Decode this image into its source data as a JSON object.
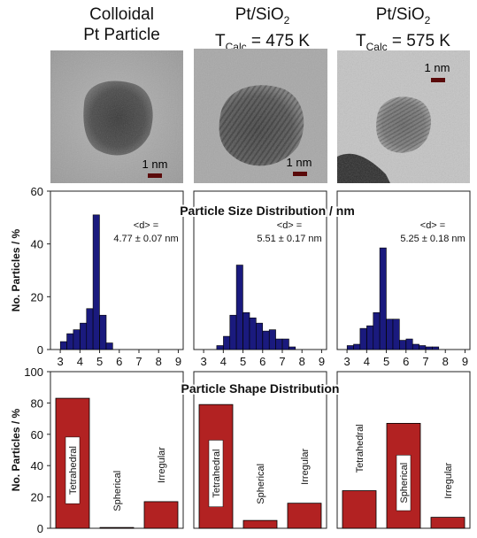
{
  "columns": [
    {
      "title_line1": "Colloidal",
      "title_line2": "Pt Particle",
      "scale_bar": "1 nm"
    },
    {
      "title_line1": "Pt/SiO",
      "title_sub1": "2",
      "title_line2_prefix": "T",
      "title_sub2": "Calc",
      "title_line2_suffix": " = 475 K",
      "scale_bar": "1 nm"
    },
    {
      "title_line1": "Pt/SiO",
      "title_sub1": "2",
      "title_line2_prefix": "T",
      "title_sub2": "Calc",
      "title_line2_suffix": " = 575 K",
      "scale_bar": "1 nm"
    }
  ],
  "colors": {
    "size_bar": "#1a1a7e",
    "shape_bar": "#b22222",
    "axis": "#222222"
  },
  "chart_data": [
    {
      "type": "bar",
      "title": "Particle Size Distribution / nm",
      "ylabel": "No. Particles / %",
      "ylim": [
        0,
        60
      ],
      "yticks": [
        0,
        20,
        40,
        60
      ],
      "xlim": [
        2.5,
        9.25
      ],
      "xticks": [
        3,
        4,
        5,
        6,
        7,
        8,
        9
      ],
      "panels": [
        {
          "annotation_line1": "<d> =",
          "annotation_line2": "4.77 ± 0.07 nm",
          "bin_width": 0.33,
          "bins": [
            {
              "x": 3.17,
              "y": 3
            },
            {
              "x": 3.5,
              "y": 6
            },
            {
              "x": 3.83,
              "y": 7.5
            },
            {
              "x": 4.17,
              "y": 10
            },
            {
              "x": 4.5,
              "y": 15.5
            },
            {
              "x": 4.83,
              "y": 51
            },
            {
              "x": 5.17,
              "y": 13
            },
            {
              "x": 5.5,
              "y": 2.5
            }
          ]
        },
        {
          "annotation_line1": "<d> =",
          "annotation_line2": "5.51 ± 0.17 nm",
          "bin_width": 0.33,
          "bins": [
            {
              "x": 3.83,
              "y": 1.5
            },
            {
              "x": 4.17,
              "y": 5
            },
            {
              "x": 4.5,
              "y": 13
            },
            {
              "x": 4.83,
              "y": 32
            },
            {
              "x": 5.17,
              "y": 14
            },
            {
              "x": 5.5,
              "y": 12
            },
            {
              "x": 5.83,
              "y": 10
            },
            {
              "x": 6.17,
              "y": 7
            },
            {
              "x": 6.5,
              "y": 7.5
            },
            {
              "x": 6.83,
              "y": 4
            },
            {
              "x": 7.17,
              "y": 4
            },
            {
              "x": 7.5,
              "y": 1
            }
          ]
        },
        {
          "annotation_line1": "<d> =",
          "annotation_line2": "5.25 ± 0.18 nm",
          "bin_width": 0.33,
          "bins": [
            {
              "x": 3.17,
              "y": 1.5
            },
            {
              "x": 3.5,
              "y": 2
            },
            {
              "x": 3.83,
              "y": 8
            },
            {
              "x": 4.17,
              "y": 9
            },
            {
              "x": 4.5,
              "y": 14
            },
            {
              "x": 4.83,
              "y": 38.5
            },
            {
              "x": 5.17,
              "y": 11.5
            },
            {
              "x": 5.5,
              "y": 11.5
            },
            {
              "x": 5.83,
              "y": 3.5
            },
            {
              "x": 6.17,
              "y": 4
            },
            {
              "x": 6.5,
              "y": 2
            },
            {
              "x": 6.83,
              "y": 1.5
            },
            {
              "x": 7.17,
              "y": 1
            },
            {
              "x": 7.5,
              "y": 1
            }
          ]
        }
      ]
    },
    {
      "type": "bar",
      "title": "Particle Shape Distribution",
      "ylabel": "No. Particles / %",
      "ylim": [
        0,
        100
      ],
      "yticks": [
        0,
        20,
        40,
        60,
        80,
        100
      ],
      "categories": [
        "Tetrahedral",
        "Spherical",
        "Irregular"
      ],
      "panels": [
        {
          "values": [
            83,
            0.5,
            17
          ]
        },
        {
          "values": [
            79,
            5,
            16
          ]
        },
        {
          "values": [
            24,
            67,
            7
          ]
        }
      ]
    }
  ]
}
